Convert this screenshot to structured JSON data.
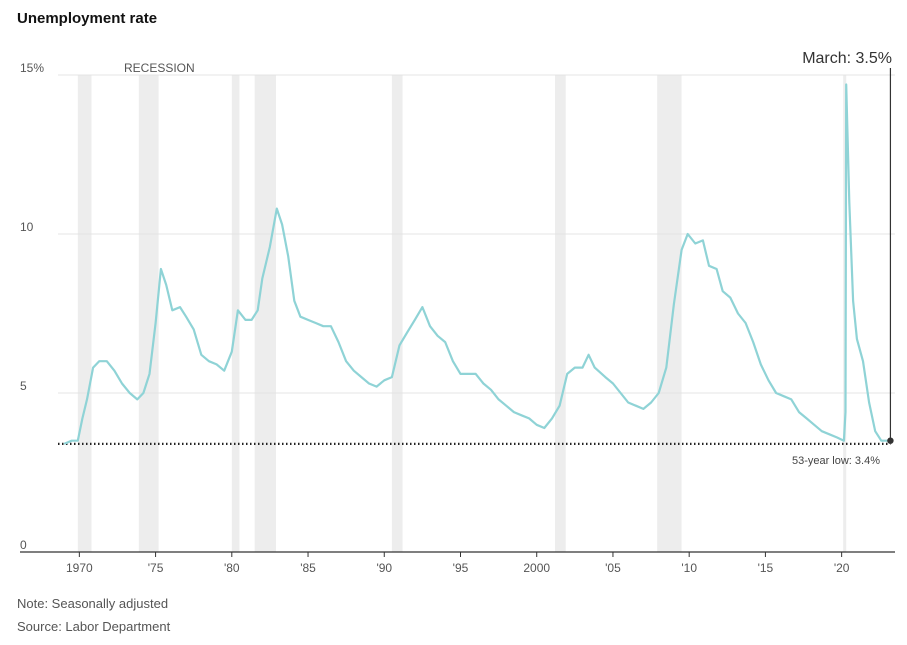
{
  "title": "Unemployment rate",
  "notes": {
    "note": "Note: Seasonally adjusted",
    "source": "Source: Labor Department"
  },
  "colors": {
    "line": "#8fd3d6",
    "recession": "#ededed",
    "grid": "#e4e4e4",
    "axis": "#333333",
    "dotted": "#222222"
  },
  "chart_data": {
    "type": "line",
    "title": "Unemployment rate",
    "ylim": [
      0,
      15
    ],
    "xlim": [
      1968.6,
      2023.5
    ],
    "y_ticks": [
      {
        "value": 0,
        "label": "0"
      },
      {
        "value": 5,
        "label": "5"
      },
      {
        "value": 10,
        "label": "10"
      },
      {
        "value": 15,
        "label": "15%"
      }
    ],
    "x_ticks": [
      {
        "value": 1970,
        "label": "1970"
      },
      {
        "value": 1975,
        "label": "'75"
      },
      {
        "value": 1980,
        "label": "'80"
      },
      {
        "value": 1985,
        "label": "'85"
      },
      {
        "value": 1990,
        "label": "'90"
      },
      {
        "value": 1995,
        "label": "'95"
      },
      {
        "value": 2000,
        "label": "2000"
      },
      {
        "value": 2005,
        "label": "'05"
      },
      {
        "value": 2010,
        "label": "'10"
      },
      {
        "value": 2015,
        "label": "'15"
      },
      {
        "value": 2020,
        "label": "'20"
      }
    ],
    "recession_label": "RECESSION",
    "recessions": [
      [
        1969.9,
        1970.8
      ],
      [
        1973.9,
        1975.2
      ],
      [
        1980.0,
        1980.5
      ],
      [
        1981.5,
        1982.9
      ],
      [
        1990.5,
        1991.2
      ],
      [
        2001.2,
        2001.9
      ],
      [
        2007.9,
        2009.5
      ],
      [
        2020.1,
        2020.3
      ]
    ],
    "latest": {
      "label": "March: 3.5%",
      "x": 2023.2,
      "value": 3.5
    },
    "low_line": {
      "label": "53-year low: 3.4%",
      "value": 3.4
    },
    "series": [
      {
        "values": [
          [
            1969.0,
            3.4
          ],
          [
            1969.5,
            3.5
          ],
          [
            1969.9,
            3.5
          ],
          [
            1970.2,
            4.2
          ],
          [
            1970.5,
            4.8
          ],
          [
            1970.9,
            5.8
          ],
          [
            1971.3,
            6.0
          ],
          [
            1971.8,
            6.0
          ],
          [
            1972.3,
            5.7
          ],
          [
            1972.8,
            5.3
          ],
          [
            1973.3,
            5.0
          ],
          [
            1973.8,
            4.8
          ],
          [
            1974.2,
            5.0
          ],
          [
            1974.6,
            5.6
          ],
          [
            1975.0,
            7.2
          ],
          [
            1975.35,
            8.9
          ],
          [
            1975.7,
            8.4
          ],
          [
            1976.1,
            7.6
          ],
          [
            1976.6,
            7.7
          ],
          [
            1977.0,
            7.4
          ],
          [
            1977.5,
            7.0
          ],
          [
            1978.0,
            6.2
          ],
          [
            1978.5,
            6.0
          ],
          [
            1979.0,
            5.9
          ],
          [
            1979.5,
            5.7
          ],
          [
            1980.0,
            6.3
          ],
          [
            1980.4,
            7.6
          ],
          [
            1980.9,
            7.3
          ],
          [
            1981.3,
            7.3
          ],
          [
            1981.7,
            7.6
          ],
          [
            1982.0,
            8.6
          ],
          [
            1982.5,
            9.6
          ],
          [
            1982.95,
            10.8
          ],
          [
            1983.3,
            10.3
          ],
          [
            1983.7,
            9.3
          ],
          [
            1984.1,
            7.9
          ],
          [
            1984.5,
            7.4
          ],
          [
            1985.0,
            7.3
          ],
          [
            1985.5,
            7.2
          ],
          [
            1986.0,
            7.1
          ],
          [
            1986.5,
            7.1
          ],
          [
            1987.0,
            6.6
          ],
          [
            1987.5,
            6.0
          ],
          [
            1988.0,
            5.7
          ],
          [
            1988.5,
            5.5
          ],
          [
            1989.0,
            5.3
          ],
          [
            1989.5,
            5.2
          ],
          [
            1990.0,
            5.4
          ],
          [
            1990.5,
            5.5
          ],
          [
            1991.0,
            6.5
          ],
          [
            1991.5,
            6.9
          ],
          [
            1992.0,
            7.3
          ],
          [
            1992.5,
            7.7
          ],
          [
            1993.0,
            7.1
          ],
          [
            1993.5,
            6.8
          ],
          [
            1994.0,
            6.6
          ],
          [
            1994.5,
            6.0
          ],
          [
            1995.0,
            5.6
          ],
          [
            1995.5,
            5.6
          ],
          [
            1996.0,
            5.6
          ],
          [
            1996.5,
            5.3
          ],
          [
            1997.0,
            5.1
          ],
          [
            1997.5,
            4.8
          ],
          [
            1998.0,
            4.6
          ],
          [
            1998.5,
            4.4
          ],
          [
            1999.0,
            4.3
          ],
          [
            1999.5,
            4.2
          ],
          [
            2000.0,
            4.0
          ],
          [
            2000.5,
            3.9
          ],
          [
            2001.0,
            4.2
          ],
          [
            2001.5,
            4.6
          ],
          [
            2002.0,
            5.6
          ],
          [
            2002.5,
            5.8
          ],
          [
            2003.0,
            5.8
          ],
          [
            2003.4,
            6.2
          ],
          [
            2003.8,
            5.8
          ],
          [
            2004.5,
            5.5
          ],
          [
            2005.0,
            5.3
          ],
          [
            2005.5,
            5.0
          ],
          [
            2006.0,
            4.7
          ],
          [
            2006.5,
            4.6
          ],
          [
            2007.0,
            4.5
          ],
          [
            2007.5,
            4.7
          ],
          [
            2008.0,
            5.0
          ],
          [
            2008.5,
            5.8
          ],
          [
            2009.0,
            7.8
          ],
          [
            2009.5,
            9.5
          ],
          [
            2009.9,
            10.0
          ],
          [
            2010.4,
            9.7
          ],
          [
            2010.9,
            9.8
          ],
          [
            2011.3,
            9.0
          ],
          [
            2011.8,
            8.9
          ],
          [
            2012.2,
            8.2
          ],
          [
            2012.7,
            8.0
          ],
          [
            2013.2,
            7.5
          ],
          [
            2013.7,
            7.2
          ],
          [
            2014.2,
            6.6
          ],
          [
            2014.7,
            5.9
          ],
          [
            2015.2,
            5.4
          ],
          [
            2015.7,
            5.0
          ],
          [
            2016.2,
            4.9
          ],
          [
            2016.7,
            4.8
          ],
          [
            2017.2,
            4.4
          ],
          [
            2017.7,
            4.2
          ],
          [
            2018.2,
            4.0
          ],
          [
            2018.7,
            3.8
          ],
          [
            2019.2,
            3.7
          ],
          [
            2019.7,
            3.6
          ],
          [
            2020.15,
            3.5
          ],
          [
            2020.25,
            4.4
          ],
          [
            2020.3,
            14.7
          ],
          [
            2020.5,
            11.0
          ],
          [
            2020.75,
            7.9
          ],
          [
            2021.0,
            6.7
          ],
          [
            2021.4,
            6.0
          ],
          [
            2021.8,
            4.7
          ],
          [
            2022.2,
            3.8
          ],
          [
            2022.6,
            3.5
          ],
          [
            2023.0,
            3.5
          ],
          [
            2023.2,
            3.5
          ]
        ]
      }
    ]
  }
}
